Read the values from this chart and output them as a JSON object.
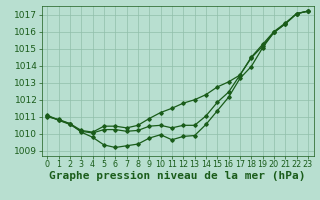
{
  "background_color": "#b8dfd0",
  "grid_color": "#90bfaa",
  "text_color": "#1a5c1a",
  "line_color": "#1a5c1a",
  "xlabel": "Graphe pression niveau de la mer (hPa)",
  "ylim": [
    1008.7,
    1017.5
  ],
  "xlim": [
    -0.5,
    23.5
  ],
  "yticks": [
    1009,
    1010,
    1011,
    1012,
    1013,
    1014,
    1015,
    1016,
    1017
  ],
  "xticks": [
    0,
    1,
    2,
    3,
    4,
    5,
    6,
    7,
    8,
    9,
    10,
    11,
    12,
    13,
    14,
    15,
    16,
    17,
    18,
    19,
    20,
    21,
    22,
    23
  ],
  "series1": [
    1011.0,
    1010.85,
    1010.6,
    1010.1,
    1009.8,
    1009.35,
    1009.2,
    1009.3,
    1009.4,
    1009.75,
    1009.95,
    1009.65,
    1009.85,
    1009.9,
    1010.55,
    1011.35,
    1012.15,
    1013.25,
    1013.95,
    1015.05,
    1015.95,
    1016.45,
    1017.05,
    1017.2
  ],
  "series2": [
    1011.05,
    1010.8,
    1010.55,
    1010.15,
    1010.05,
    1010.25,
    1010.25,
    1010.15,
    1010.2,
    1010.45,
    1010.5,
    1010.35,
    1010.5,
    1010.5,
    1011.05,
    1011.85,
    1012.45,
    1013.45,
    1014.45,
    1015.15,
    1015.95,
    1016.45,
    1017.05,
    1017.2
  ],
  "series3": [
    1011.1,
    1010.8,
    1010.6,
    1010.2,
    1010.1,
    1010.45,
    1010.45,
    1010.35,
    1010.5,
    1010.9,
    1011.25,
    1011.5,
    1011.8,
    1012.0,
    1012.3,
    1012.75,
    1013.05,
    1013.45,
    1014.5,
    1015.25,
    1016.0,
    1016.5,
    1017.05,
    1017.2
  ],
  "marker": "D",
  "markersize": 1.8,
  "linewidth": 0.9,
  "xlabel_fontsize": 8,
  "ytick_fontsize": 6.5,
  "xtick_fontsize": 5.8
}
